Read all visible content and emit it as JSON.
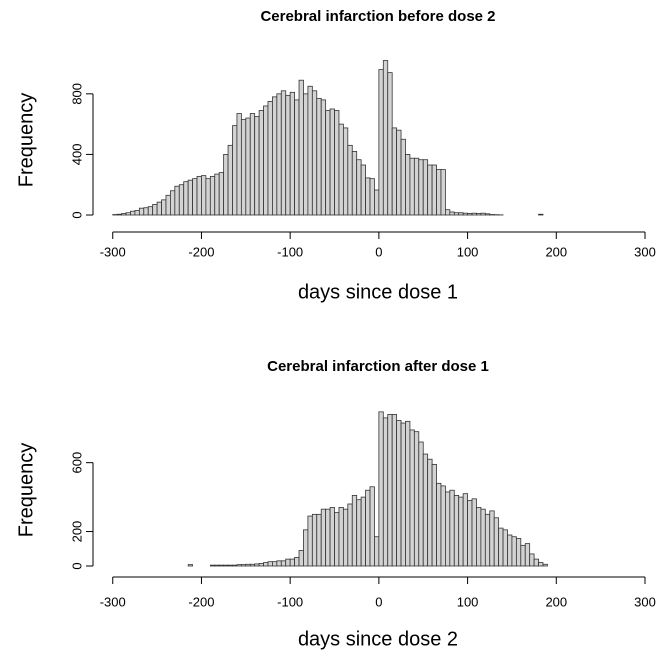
{
  "chart_data": [
    {
      "type": "histogram",
      "title": "Cerebral infarction before dose 2",
      "xlabel": "days since dose 1",
      "ylabel": "Frequency",
      "bins": [
        -300,
        -295,
        -290,
        -285,
        -280,
        -275,
        -270,
        -265,
        -260,
        -255,
        -250,
        -245,
        -240,
        -235,
        -230,
        -225,
        -220,
        -215,
        -210,
        -205,
        -200,
        -195,
        -190,
        -185,
        -180,
        -175,
        -170,
        -165,
        -160,
        -155,
        -150,
        -145,
        -140,
        -135,
        -130,
        -125,
        -120,
        -115,
        -110,
        -105,
        -100,
        -95,
        -90,
        -85,
        -80,
        -75,
        -70,
        -65,
        -60,
        -55,
        -50,
        -45,
        -40,
        -35,
        -30,
        -25,
        -20,
        -15,
        -10,
        -5,
        0,
        5,
        10,
        15,
        20,
        25,
        30,
        35,
        40,
        45,
        50,
        55,
        60,
        65,
        70,
        75,
        80,
        85,
        90,
        95,
        100,
        105,
        110,
        115,
        120,
        125,
        130,
        135,
        140,
        145,
        150,
        155,
        160,
        165,
        170,
        175,
        180,
        185,
        190,
        195,
        200,
        205,
        210,
        215,
        220,
        225,
        230,
        235,
        240,
        245,
        250,
        255,
        260,
        265,
        270,
        275,
        280,
        285,
        290,
        295,
        300
      ],
      "counts": [
        3,
        5,
        10,
        15,
        25,
        30,
        45,
        48,
        55,
        70,
        85,
        100,
        130,
        160,
        190,
        200,
        220,
        230,
        240,
        255,
        260,
        240,
        255,
        270,
        280,
        400,
        460,
        590,
        670,
        630,
        640,
        670,
        650,
        690,
        720,
        750,
        780,
        800,
        820,
        790,
        810,
        760,
        890,
        800,
        850,
        820,
        770,
        760,
        690,
        700,
        690,
        600,
        575,
        460,
        420,
        365,
        330,
        245,
        240,
        165,
        960,
        1020,
        940,
        575,
        560,
        500,
        400,
        375,
        375,
        365,
        365,
        330,
        330,
        300,
        300,
        35,
        20,
        15,
        15,
        12,
        10,
        12,
        10,
        12,
        8,
        3,
        2,
        1,
        0,
        0,
        0,
        0,
        0,
        0,
        0,
        0,
        5,
        0,
        0,
        0,
        0,
        0,
        0,
        0,
        0,
        0,
        0,
        0,
        0,
        0,
        0,
        0,
        0,
        0,
        0,
        0,
        0,
        0,
        0,
        0
      ],
      "color": "#d3d3d3",
      "xlim": [
        -320,
        300
      ],
      "ylim": [
        0,
        1030
      ],
      "xticks": [
        -300,
        -200,
        -100,
        0,
        100,
        200,
        300
      ],
      "yticks": [
        0,
        400,
        800
      ]
    },
    {
      "type": "histogram",
      "title": "Cerebral infarction after dose 1",
      "xlabel": "days since dose 2",
      "ylabel": "Frequency",
      "bins": [
        -300,
        -295,
        -290,
        -285,
        -280,
        -275,
        -270,
        -265,
        -260,
        -255,
        -250,
        -245,
        -240,
        -235,
        -230,
        -225,
        -220,
        -215,
        -210,
        -205,
        -200,
        -195,
        -190,
        -185,
        -180,
        -175,
        -170,
        -165,
        -160,
        -155,
        -150,
        -145,
        -140,
        -135,
        -130,
        -125,
        -120,
        -115,
        -110,
        -105,
        -100,
        -95,
        -90,
        -85,
        -80,
        -75,
        -70,
        -65,
        -60,
        -55,
        -50,
        -45,
        -40,
        -35,
        -30,
        -25,
        -20,
        -15,
        -10,
        -5,
        0,
        5,
        10,
        15,
        20,
        25,
        30,
        35,
        40,
        45,
        50,
        55,
        60,
        65,
        70,
        75,
        80,
        85,
        90,
        95,
        100,
        105,
        110,
        115,
        120,
        125,
        130,
        135,
        140,
        145,
        150,
        155,
        160,
        165,
        170,
        175,
        180,
        185,
        190,
        195,
        200,
        205,
        210,
        215,
        220,
        225,
        230,
        235,
        240,
        245,
        250,
        255,
        260,
        265,
        270,
        275,
        280,
        285,
        290,
        295,
        300
      ],
      "counts": [
        0,
        0,
        0,
        0,
        0,
        0,
        0,
        0,
        0,
        0,
        0,
        0,
        0,
        0,
        0,
        0,
        0,
        8,
        0,
        0,
        0,
        0,
        5,
        5,
        5,
        5,
        5,
        5,
        8,
        8,
        10,
        10,
        12,
        15,
        20,
        25,
        25,
        30,
        30,
        40,
        40,
        50,
        90,
        210,
        290,
        300,
        300,
        330,
        330,
        340,
        310,
        340,
        330,
        360,
        410,
        385,
        400,
        440,
        460,
        170,
        895,
        860,
        880,
        880,
        845,
        830,
        840,
        790,
        780,
        720,
        650,
        620,
        590,
        480,
        465,
        430,
        440,
        410,
        400,
        420,
        380,
        390,
        340,
        330,
        300,
        320,
        280,
        220,
        210,
        180,
        170,
        160,
        120,
        130,
        70,
        40,
        20,
        10,
        0,
        0,
        0,
        0,
        0,
        0,
        0,
        0,
        0,
        0,
        0,
        0,
        0,
        0,
        0,
        0,
        0,
        0,
        0,
        0,
        0,
        0
      ],
      "color": "#d3d3d3",
      "xlim": [
        -320,
        300
      ],
      "ylim": [
        0,
        900
      ],
      "xticks": [
        -300,
        -200,
        -100,
        0,
        100,
        200,
        300
      ],
      "yticks": [
        0,
        200,
        600
      ]
    }
  ]
}
